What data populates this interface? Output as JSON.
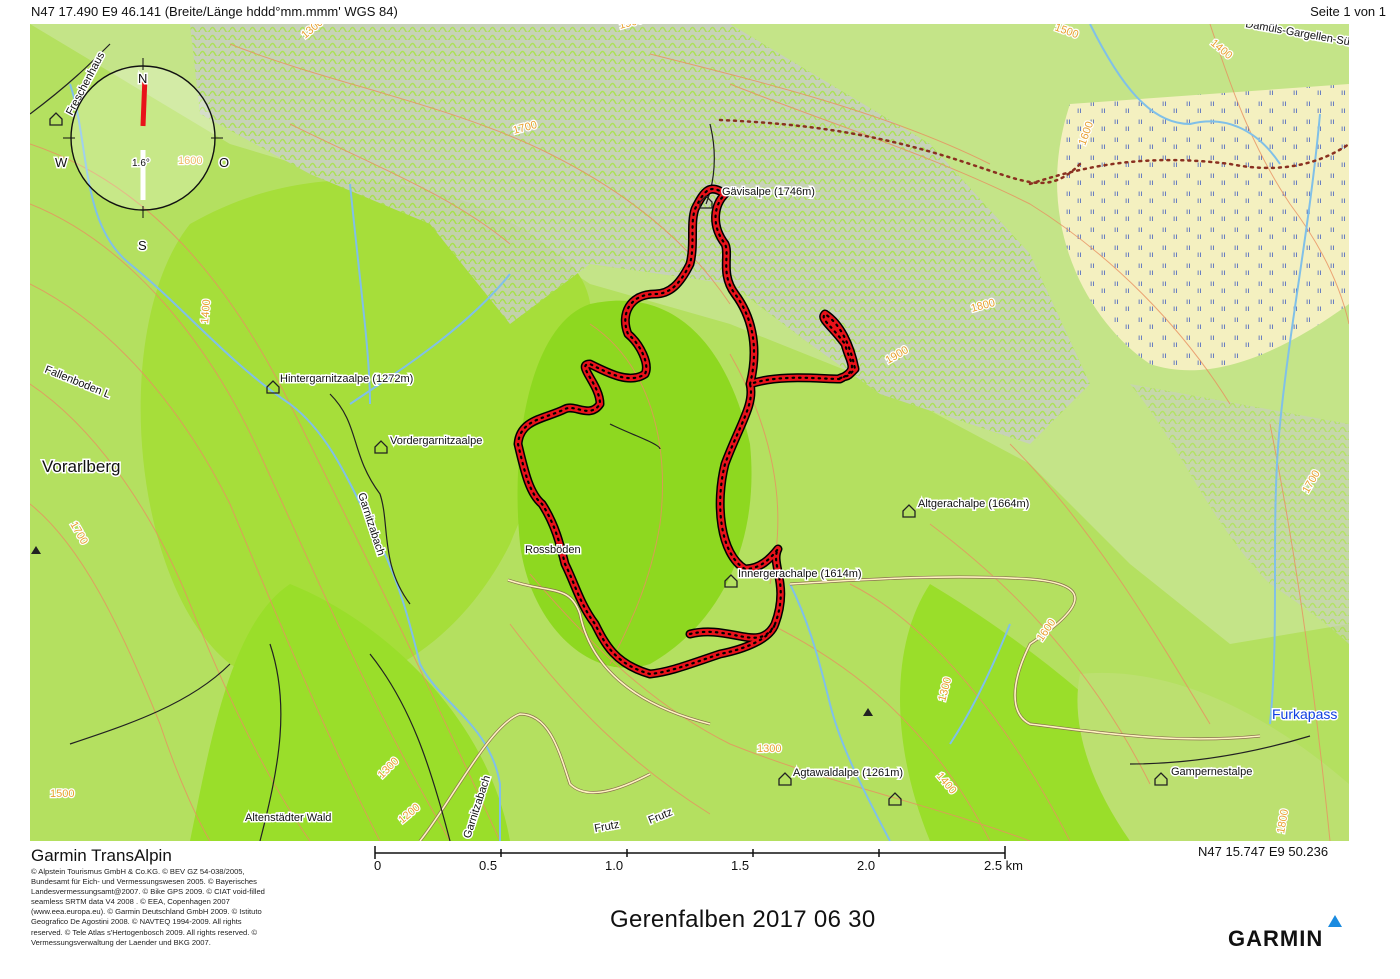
{
  "header": {
    "coordinate_top_left": "N47 17.490 E9 46.141  (Breite/Länge hddd°mm.mmm' WGS 84)",
    "page_indicator": "Seite 1 von 1"
  },
  "map": {
    "compass": {
      "north": "N",
      "south": "S",
      "west": "W",
      "east": "O",
      "declination": "1.6°"
    },
    "places": [
      {
        "name": "Gävisalpe (1746m)",
        "type": "hut"
      },
      {
        "name": "Hintergarnitzaalpe (1272m)",
        "type": "hut"
      },
      {
        "name": "Vordergarnitzaalpe",
        "type": "hut"
      },
      {
        "name": "Altgerachalpe (1664m)",
        "type": "hut"
      },
      {
        "name": "Innergerachalpe (1614m)",
        "type": "hut"
      },
      {
        "name": "Rossböden",
        "type": "point"
      },
      {
        "name": "Agtawaldalpe (1261m)",
        "type": "hut"
      },
      {
        "name": "Gampernestalpe",
        "type": "hut"
      },
      {
        "name": "Altenstädter Wald",
        "type": "point"
      },
      {
        "name": "Vorarlberg",
        "type": "region"
      },
      {
        "name": "Furkapass",
        "type": "pass"
      },
      {
        "name": "Freschenhaus",
        "type": "road"
      },
      {
        "name": "Fallenboden L",
        "type": "road"
      },
      {
        "name": "Garnitzabach",
        "type": "river"
      },
      {
        "name": "Garnitzabach",
        "type": "river"
      },
      {
        "name": "Frutz",
        "type": "river"
      },
      {
        "name": "Frutz",
        "type": "river"
      },
      {
        "name": "Damüls-Gargellen-Süns",
        "type": "road"
      }
    ],
    "elevations": [
      "1600",
      "1700",
      "1400",
      "1700",
      "1500",
      "1300",
      "1200",
      "1300",
      "1500",
      "1400",
      "1800",
      "1900",
      "1600",
      "1700",
      "1800",
      "1600",
      "1500",
      "1700",
      "1600",
      "1300",
      "1400"
    ],
    "colors": {
      "track": "#e8121a",
      "terrain": "#a8dc50",
      "contour": "#e89060",
      "water": "#80c0e8"
    }
  },
  "footer": {
    "brand": "Garmin TransAlpin",
    "copyright": "© Alpstein Tourismus GmbH & Co.KG. © BEV GZ 54-038/2005, Bundesamt für Eich- und Vermessungswesen 2005. © Bayerisches Landesvermessungsamt@2007. © Bike GPS 2009. © CIAT void-filled seamless SRTM data V4 2008 . © EEA, Copenhagen 2007 (www.eea.europa.eu). © Garmin Deutschland GmbH 2009. © Istituto Geografico De Agostini 2008. © NAVTEQ 1994-2009. All rights reserved. © Tele Atlas s'Hertogenbosch 2009. All rights reserved. © Vermessungsverwaltung der Laender und BKG 2007.",
    "coordinate_bottom_right": "N47 15.747 E9 50.236",
    "scale": {
      "ticks": [
        "0",
        "0.5",
        "1.0",
        "1.5",
        "2.0",
        "2.5 km"
      ]
    },
    "title": "Gerenfalben 2017 06 30",
    "logo": "GARMIN"
  }
}
